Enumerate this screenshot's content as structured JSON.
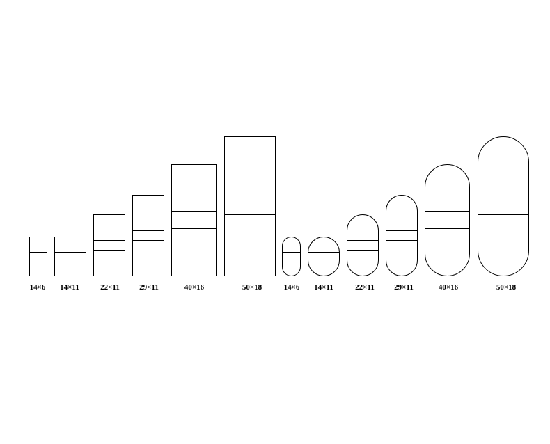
{
  "rectangles": [
    "14×6",
    "14×11",
    "22×11",
    "29×11",
    "40×16",
    "50×18"
  ],
  "capsules": [
    "14×6",
    "14×11",
    "22×11",
    "29×11",
    "40×16",
    "50×18"
  ]
}
